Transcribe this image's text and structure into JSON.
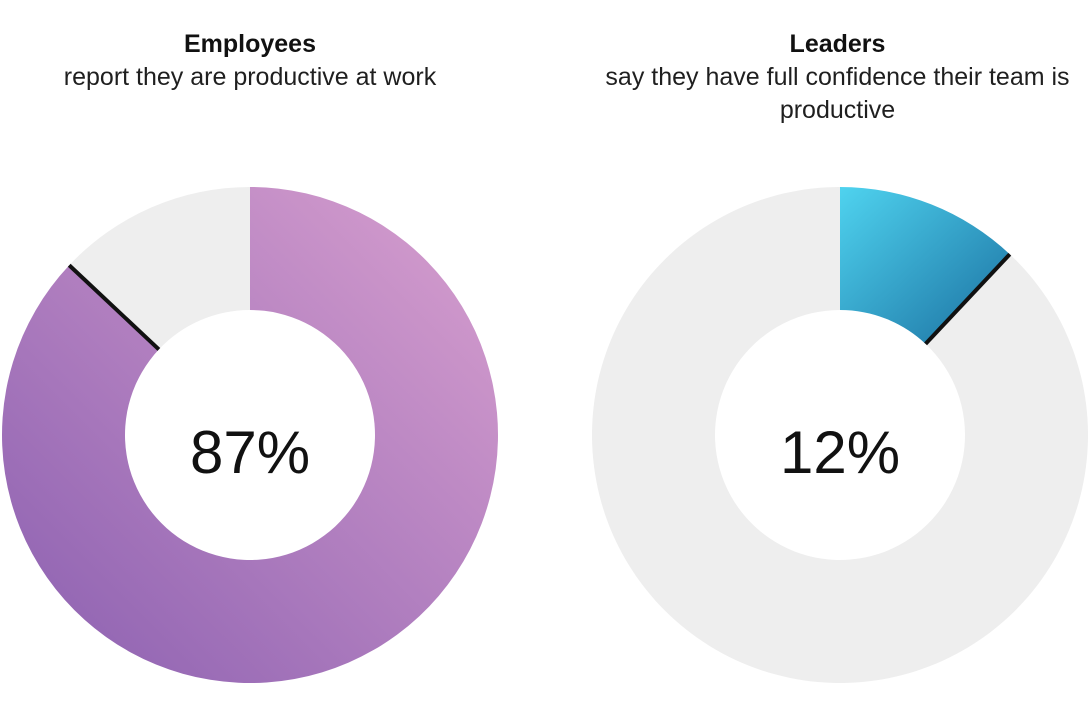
{
  "chart_data": [
    {
      "type": "pie",
      "title": "Employees",
      "subtitle": "report they are productive at work",
      "value_label": "87%",
      "value": 87,
      "slices": [
        {
          "label": "87%",
          "value": 87,
          "color_start": "#d9a0cf",
          "color_end": "#8a5fb0"
        },
        {
          "label": "",
          "value": 13,
          "color": "#eeeeee"
        }
      ]
    },
    {
      "type": "pie",
      "title": "Leaders",
      "subtitle": "say they have full confidence their team is productive",
      "value_label": "12%",
      "value": 12,
      "slices": [
        {
          "label": "12%",
          "value": 12,
          "color_start": "#4fd3ef",
          "color_end": "#1a6fa0"
        },
        {
          "label": "",
          "value": 88,
          "color": "#eeeeee"
        }
      ]
    }
  ]
}
